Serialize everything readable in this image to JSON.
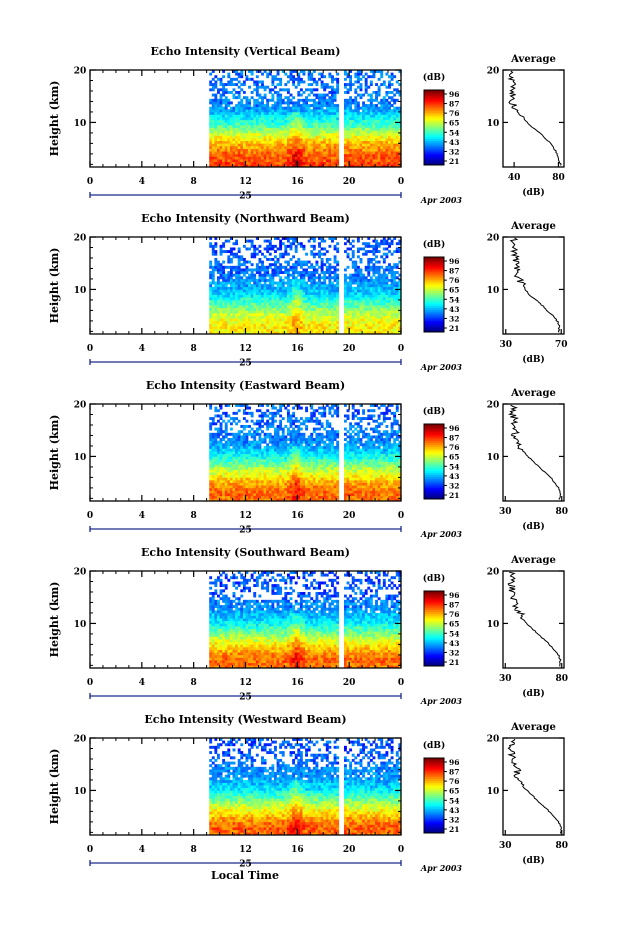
{
  "figure": {
    "colorbar_unit": "(dB)",
    "colorbar_ticks": [
      "96",
      "87",
      "76",
      "65",
      "54",
      "43",
      "32",
      "21"
    ],
    "xticks": [
      "0",
      "4",
      "8",
      "12",
      "16",
      "20",
      "0"
    ],
    "ylabel": "Height (km)",
    "yticks": [
      "20",
      "10"
    ],
    "date_day": "25",
    "date_month_year": "Apr 2003",
    "xlabel_bottom": "Local Time",
    "avg_title": "Average",
    "avg_xlabel": "(dB)"
  },
  "chart_data": [
    {
      "type": "heatmap",
      "title": "Echo Intensity (Vertical Beam)",
      "x_range_hours": [
        0,
        24
      ],
      "data_start_hour": 9.2,
      "data_gap_hour": 19.3,
      "y_range_km": [
        1.5,
        20
      ],
      "clim_db": [
        21,
        96
      ],
      "profile_db": [
        [
          2,
          82
        ],
        [
          3,
          80
        ],
        [
          4,
          79
        ],
        [
          5,
          76
        ],
        [
          6,
          73
        ],
        [
          7,
          68
        ],
        [
          8,
          63
        ],
        [
          9,
          57
        ],
        [
          10,
          52
        ],
        [
          11,
          48
        ],
        [
          12,
          45
        ],
        [
          13,
          40
        ],
        [
          14,
          38
        ],
        [
          15,
          40
        ],
        [
          16,
          37
        ],
        [
          17,
          39
        ],
        [
          18,
          37
        ],
        [
          19,
          38
        ]
      ],
      "avg_xticks": [
        "40",
        "80"
      ],
      "avg_xlim": [
        30,
        85
      ]
    },
    {
      "type": "heatmap",
      "title": "Echo Intensity (Northward Beam)",
      "x_range_hours": [
        0,
        24
      ],
      "data_start_hour": 9.2,
      "data_gap_hour": 19.3,
      "y_range_km": [
        1.5,
        20
      ],
      "clim_db": [
        21,
        96
      ],
      "profile_db": [
        [
          2,
          68
        ],
        [
          3,
          69
        ],
        [
          4,
          67
        ],
        [
          5,
          64
        ],
        [
          6,
          60
        ],
        [
          7,
          56
        ],
        [
          8,
          52
        ],
        [
          9,
          47
        ],
        [
          10,
          44
        ],
        [
          11,
          42
        ],
        [
          12,
          40
        ],
        [
          13,
          38
        ],
        [
          14,
          37
        ],
        [
          15,
          38
        ],
        [
          16,
          36
        ],
        [
          17,
          37
        ],
        [
          18,
          35
        ],
        [
          19,
          36
        ]
      ],
      "avg_xticks": [
        "30",
        "70"
      ],
      "avg_xlim": [
        28,
        72
      ]
    },
    {
      "type": "heatmap",
      "title": "Echo Intensity (Eastward Beam)",
      "x_range_hours": [
        0,
        24
      ],
      "data_start_hour": 9.2,
      "data_gap_hour": 19.3,
      "y_range_km": [
        1.5,
        20
      ],
      "clim_db": [
        21,
        96
      ],
      "profile_db": [
        [
          2,
          78
        ],
        [
          3,
          79
        ],
        [
          4,
          77
        ],
        [
          5,
          74
        ],
        [
          6,
          70
        ],
        [
          7,
          65
        ],
        [
          8,
          60
        ],
        [
          9,
          55
        ],
        [
          10,
          50
        ],
        [
          11,
          46
        ],
        [
          12,
          42
        ],
        [
          13,
          40
        ],
        [
          14,
          38
        ],
        [
          15,
          41
        ],
        [
          16,
          37
        ],
        [
          17,
          39
        ],
        [
          18,
          36
        ],
        [
          19,
          37
        ]
      ],
      "avg_xticks": [
        "30",
        "80"
      ],
      "avg_xlim": [
        28,
        82
      ]
    },
    {
      "type": "heatmap",
      "title": "Echo Intensity (Southward Beam)",
      "x_range_hours": [
        0,
        24
      ],
      "data_start_hour": 9.2,
      "data_gap_hour": 19.3,
      "y_range_km": [
        1.5,
        20
      ],
      "clim_db": [
        21,
        96
      ],
      "profile_db": [
        [
          2,
          78
        ],
        [
          3,
          79
        ],
        [
          4,
          77
        ],
        [
          5,
          73
        ],
        [
          6,
          69
        ],
        [
          7,
          64
        ],
        [
          8,
          59
        ],
        [
          9,
          54
        ],
        [
          10,
          49
        ],
        [
          11,
          45
        ],
        [
          12,
          44
        ],
        [
          13,
          39
        ],
        [
          14,
          40
        ],
        [
          15,
          37
        ],
        [
          16,
          36
        ],
        [
          17,
          36
        ],
        [
          18,
          35
        ],
        [
          19,
          36
        ]
      ],
      "avg_xticks": [
        "30",
        "80"
      ],
      "avg_xlim": [
        28,
        82
      ]
    },
    {
      "type": "heatmap",
      "title": "Echo Intensity (Westward Beam)",
      "x_range_hours": [
        0,
        24
      ],
      "data_start_hour": 9.2,
      "data_gap_hour": 19.3,
      "y_range_km": [
        1.5,
        20
      ],
      "clim_db": [
        21,
        96
      ],
      "profile_db": [
        [
          2,
          79
        ],
        [
          3,
          80
        ],
        [
          4,
          77
        ],
        [
          5,
          73
        ],
        [
          6,
          69
        ],
        [
          7,
          64
        ],
        [
          8,
          59
        ],
        [
          9,
          54
        ],
        [
          10,
          49
        ],
        [
          11,
          45
        ],
        [
          12,
          43
        ],
        [
          13,
          40
        ],
        [
          14,
          41
        ],
        [
          15,
          38
        ],
        [
          16,
          37
        ],
        [
          17,
          36
        ],
        [
          18,
          35
        ],
        [
          19,
          36
        ]
      ],
      "avg_xticks": [
        "30",
        "80"
      ],
      "avg_xlim": [
        28,
        82
      ]
    }
  ]
}
